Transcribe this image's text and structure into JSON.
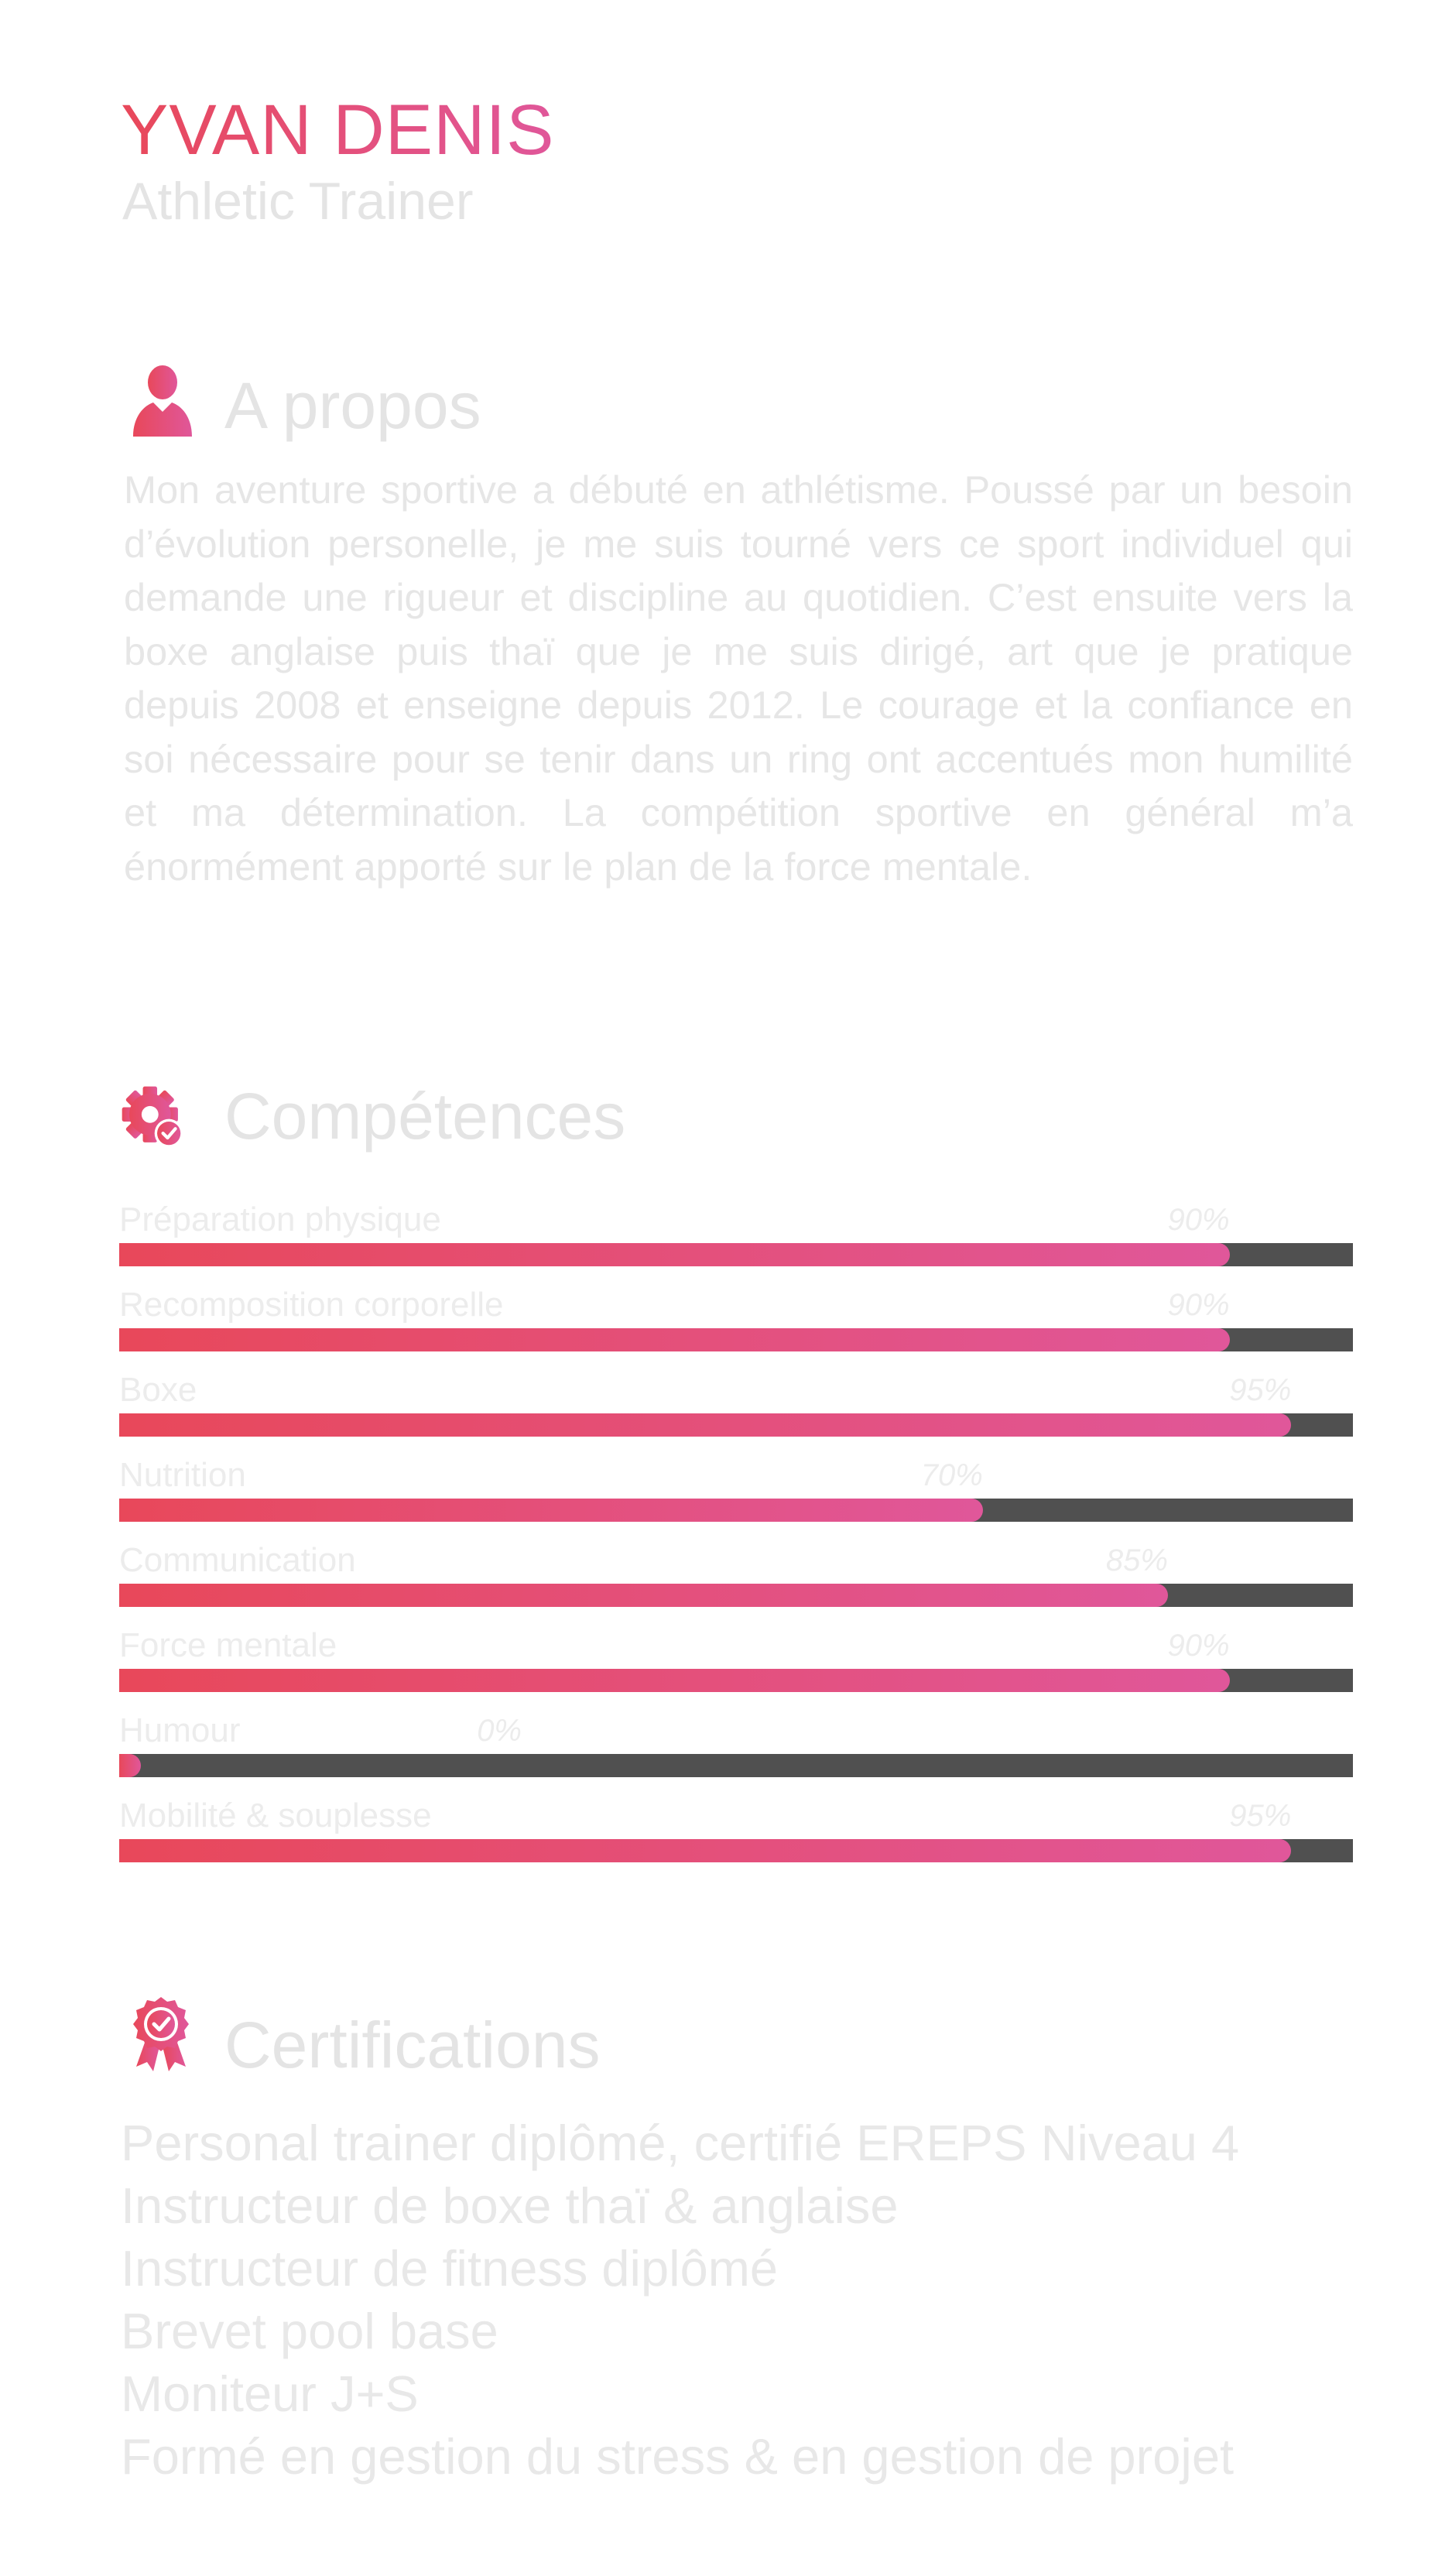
{
  "header": {
    "name": "YVAN DENIS",
    "role": "Athletic Trainer"
  },
  "about": {
    "title": "A propos",
    "icon": "user-icon",
    "text": "Mon aventure sportive a débuté en athlétisme. Poussé  par un besoin d’évolution personelle, je me suis tourné vers ce sport individuel qui demande une rigueur et discipline au quotidien. C’est ensuite vers la boxe anglaise puis thaï que je me suis dirigé, art que je pratique depuis 2008 et enseigne depuis 2012. Le courage et la confiance en soi nécessaire pour se tenir dans un ring ont accentués mon humilité et ma détermination. La compétition sportive en général m’a énormément apporté sur le plan de la force mentale."
  },
  "skills": {
    "title": "Compétences",
    "icon": "gear-check-icon",
    "items": [
      {
        "label": "Préparation physique",
        "value": 90,
        "pct_label": "90%"
      },
      {
        "label": "Recomposition corporelle",
        "value": 90,
        "pct_label": "90%"
      },
      {
        "label": "Boxe",
        "value": 95,
        "pct_label": "95%"
      },
      {
        "label": "Nutrition",
        "value": 70,
        "pct_label": "70%"
      },
      {
        "label": "Communication",
        "value": 85,
        "pct_label": "85%"
      },
      {
        "label": "Force mentale",
        "value": 90,
        "pct_label": "90%"
      },
      {
        "label": "Humour",
        "value": 0,
        "pct_label": "0%"
      },
      {
        "label": "Mobilité & souplesse",
        "value": 95,
        "pct_label": "95%"
      }
    ]
  },
  "certifications": {
    "title": "Certifications",
    "icon": "award-badge-icon",
    "items": [
      "Personal trainer diplômé, certifié EREPS Niveau 4",
      "Instructeur de boxe thaï & anglaise",
      "Instructeur de fitness diplômé",
      "Brevet pool base",
      "Moniteur J+S",
      "Formé en gestion du stress & en gestion de projet"
    ]
  },
  "colors": {
    "accent_start": "#e8485a",
    "accent_end": "#e0579a",
    "track": "#505050",
    "text_light": "#e4e4e4"
  }
}
